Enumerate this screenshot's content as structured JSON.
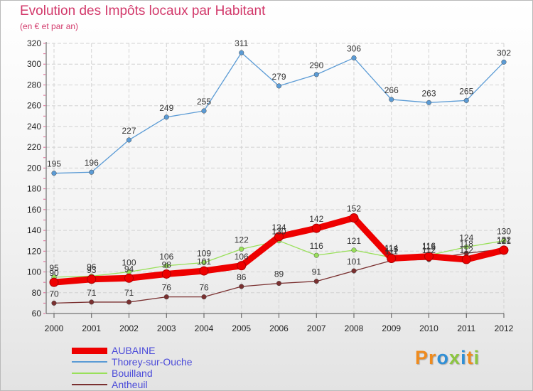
{
  "title": "Evolution des Impôts locaux par Habitant",
  "subtitle": "(en € et par an)",
  "logo": {
    "text": "Proxiti",
    "letter_colors": [
      "#ef8b1e",
      "#ef8b1e",
      "#2f8fd6",
      "#8cc63f",
      "#2f8fd6",
      "#ef8b1e",
      "#8cc63f"
    ]
  },
  "chart_data": {
    "type": "line",
    "x": [
      "2000",
      "2001",
      "2002",
      "2003",
      "2004",
      "2005",
      "2006",
      "2007",
      "2008",
      "2009",
      "2010",
      "2011",
      "2012"
    ],
    "ylim": [
      60,
      320
    ],
    "yticks": [
      "60",
      "80",
      "100",
      "120",
      "140",
      "160",
      "180",
      "200",
      "220",
      "240",
      "260",
      "280",
      "300",
      "320"
    ],
    "grid": true,
    "legend_position": "bottom-left",
    "series": [
      {
        "name": "AUBAINE",
        "values": [
          90,
          93,
          94,
          98,
          101,
          106,
          134,
          142,
          152,
          113,
          115,
          112,
          121
        ],
        "labels": [
          "90",
          "93",
          "94",
          "98",
          "101",
          "106",
          "134",
          "142",
          "152",
          "113",
          "115",
          "112",
          "121"
        ],
        "color": "#ee0000",
        "legend_color": "#4b4bd9",
        "style": "thick"
      },
      {
        "name": "Thorey-sur-Ouche",
        "values": [
          195,
          196,
          227,
          249,
          255,
          311,
          279,
          290,
          306,
          266,
          263,
          265,
          302
        ],
        "labels": [
          "195",
          "196",
          "227",
          "249",
          "255",
          "311",
          "279",
          "290",
          "306",
          "266",
          "263",
          "265",
          "302"
        ],
        "color": "#5b9bd5",
        "legend_color": "#4b4bd9",
        "style": "thin"
      },
      {
        "name": "Bouilland",
        "values": [
          95,
          96,
          100,
          106,
          109,
          122,
          130,
          116,
          121,
          114,
          116,
          124,
          130
        ],
        "labels": [
          "95",
          "96",
          "100",
          "106",
          "109",
          "122",
          "130",
          "116",
          "121",
          "114",
          "116",
          "124",
          "130"
        ],
        "color": "#99e05a",
        "legend_color": "#4b4bd9",
        "style": "thin"
      },
      {
        "name": "Antheuil",
        "values": [
          70,
          71,
          71,
          76,
          76,
          86,
          89,
          91,
          101,
          111,
          112,
          118,
          122
        ],
        "labels": [
          "70",
          "71",
          "71",
          "76",
          "76",
          "86",
          "89",
          "91",
          "101",
          "111",
          "112",
          "118",
          "122"
        ],
        "color": "#7a3030",
        "legend_color": "#4b4bd9",
        "style": "thin"
      }
    ]
  }
}
